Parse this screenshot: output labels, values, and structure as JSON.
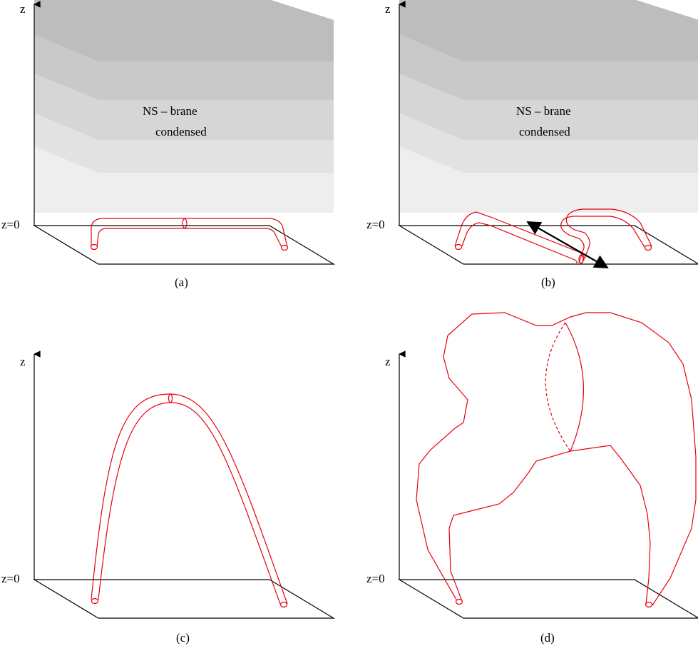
{
  "panels": {
    "a": {
      "caption": "(a)",
      "z_label": "z",
      "z0_label": "z=0",
      "text_line1": "NS – brane",
      "text_line2": "condensed"
    },
    "b": {
      "caption": "(b)",
      "z_label": "z",
      "z0_label": "z=0",
      "text_line1": "NS – brane",
      "text_line2": "condensed"
    },
    "c": {
      "caption": "(c)",
      "z_label": "z",
      "z0_label": "z=0"
    },
    "d": {
      "caption": "(d)",
      "z_label": "z",
      "z0_label": "z=0"
    }
  },
  "colors": {
    "tube": "#e8000b",
    "layer1": "#bdbdbd",
    "layer2": "#c9c9c9",
    "layer3": "#d6d6d6",
    "layer4": "#e2e2e2",
    "layer5": "#eeeeee"
  }
}
